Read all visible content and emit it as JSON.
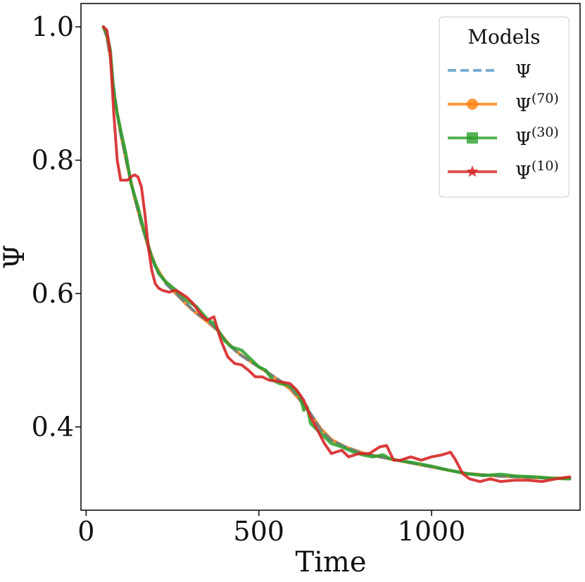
{
  "chart_data": {
    "type": "line",
    "title": "",
    "xlabel": "Time",
    "ylabel": "Ψ",
    "xlim": [
      -15,
      1430
    ],
    "ylim": [
      0.275,
      1.035
    ],
    "xticks": [
      0,
      500,
      1000
    ],
    "xtick_labels": [
      "0",
      "500",
      "1000"
    ],
    "yticks": [
      0.4,
      0.6,
      0.8,
      1.0
    ],
    "ytick_labels": [
      "0.4",
      "0.6",
      "0.8",
      "1.0"
    ],
    "legend": {
      "title": "Models",
      "placement": "top-right",
      "entries": [
        {
          "label": "Ψ",
          "sup": "",
          "marker": "none",
          "style": "dashed"
        },
        {
          "label": "Ψ",
          "sup": "(70)",
          "marker": "circle",
          "style": "solid"
        },
        {
          "label": "Ψ",
          "sup": "(30)",
          "marker": "square",
          "style": "solid"
        },
        {
          "label": "Ψ",
          "sup": "(10)",
          "marker": "star",
          "style": "solid"
        }
      ]
    },
    "series": [
      {
        "name": "Ψ",
        "color": "#1f77b4",
        "x": [
          50,
          60,
          70,
          80,
          90,
          100,
          120,
          140,
          160,
          180,
          200,
          230,
          260,
          290,
          320,
          350,
          380,
          410,
          440,
          470,
          500,
          530,
          560,
          590,
          620,
          650,
          680,
          710,
          750,
          800,
          850,
          900,
          950,
          1000,
          1050,
          1100,
          1150,
          1200,
          1250,
          1300,
          1350,
          1400
        ],
        "values": [
          1.0,
          0.985,
          0.955,
          0.91,
          0.87,
          0.84,
          0.79,
          0.745,
          0.705,
          0.67,
          0.64,
          0.615,
          0.6,
          0.585,
          0.57,
          0.56,
          0.545,
          0.525,
          0.51,
          0.5,
          0.49,
          0.48,
          0.47,
          0.46,
          0.44,
          0.42,
          0.395,
          0.38,
          0.37,
          0.36,
          0.355,
          0.35,
          0.345,
          0.34,
          0.335,
          0.33,
          0.328,
          0.326,
          0.325,
          0.324,
          0.323,
          0.323
        ]
      },
      {
        "name": "Ψ(70)",
        "color": "#ff7f0e",
        "x": [
          50,
          60,
          70,
          80,
          90,
          100,
          120,
          140,
          160,
          180,
          200,
          230,
          260,
          290,
          320,
          350,
          380,
          410,
          440,
          470,
          500,
          530,
          560,
          590,
          620,
          650,
          680,
          710,
          750,
          800,
          850,
          900,
          950,
          1000,
          1050,
          1100,
          1150,
          1200,
          1250,
          1300,
          1350,
          1400
        ],
        "values": [
          1.0,
          0.985,
          0.955,
          0.905,
          0.87,
          0.84,
          0.79,
          0.745,
          0.705,
          0.67,
          0.642,
          0.617,
          0.6,
          0.584,
          0.57,
          0.558,
          0.545,
          0.526,
          0.511,
          0.5,
          0.49,
          0.48,
          0.469,
          0.457,
          0.44,
          0.419,
          0.397,
          0.381,
          0.37,
          0.361,
          0.355,
          0.35,
          0.345,
          0.34,
          0.335,
          0.33,
          0.328,
          0.326,
          0.325,
          0.324,
          0.323,
          0.323
        ]
      },
      {
        "name": "Ψ(30)",
        "color": "#2ca02c",
        "x": [
          50,
          60,
          70,
          80,
          90,
          100,
          115,
          130,
          150,
          170,
          190,
          210,
          230,
          260,
          290,
          320,
          350,
          370,
          400,
          420,
          450,
          470,
          500,
          520,
          540,
          560,
          580,
          600,
          620,
          630,
          640,
          650,
          670,
          690,
          710,
          740,
          770,
          800,
          830,
          860,
          880,
          900,
          950,
          1000,
          1050,
          1100,
          1150,
          1200,
          1250,
          1300,
          1350,
          1400
        ],
        "values": [
          1.0,
          0.99,
          0.965,
          0.9,
          0.87,
          0.845,
          0.81,
          0.765,
          0.73,
          0.69,
          0.655,
          0.63,
          0.618,
          0.605,
          0.59,
          0.58,
          0.562,
          0.555,
          0.53,
          0.52,
          0.515,
          0.505,
          0.49,
          0.485,
          0.47,
          0.465,
          0.463,
          0.458,
          0.445,
          0.425,
          0.43,
          0.405,
          0.395,
          0.385,
          0.375,
          0.37,
          0.363,
          0.358,
          0.355,
          0.358,
          0.352,
          0.35,
          0.346,
          0.341,
          0.335,
          0.33,
          0.327,
          0.329,
          0.326,
          0.325,
          0.323,
          0.322
        ]
      },
      {
        "name": "Ψ(10)",
        "color": "#d62728",
        "x": [
          50,
          60,
          70,
          80,
          90,
          100,
          110,
          120,
          130,
          140,
          150,
          160,
          170,
          180,
          190,
          200,
          210,
          220,
          240,
          260,
          290,
          310,
          330,
          350,
          370,
          390,
          410,
          430,
          450,
          470,
          490,
          510,
          530,
          560,
          590,
          610,
          630,
          650,
          670,
          690,
          710,
          740,
          760,
          790,
          820,
          850,
          870,
          890,
          910,
          940,
          970,
          1000,
          1030,
          1055,
          1070,
          1090,
          1110,
          1140,
          1170,
          1200,
          1240,
          1280,
          1320,
          1360,
          1400
        ],
        "values": [
          1.0,
          0.995,
          0.96,
          0.87,
          0.8,
          0.77,
          0.77,
          0.77,
          0.775,
          0.778,
          0.775,
          0.76,
          0.72,
          0.67,
          0.635,
          0.615,
          0.608,
          0.605,
          0.602,
          0.605,
          0.595,
          0.585,
          0.57,
          0.56,
          0.565,
          0.53,
          0.505,
          0.495,
          0.493,
          0.485,
          0.475,
          0.475,
          0.47,
          0.468,
          0.465,
          0.455,
          0.44,
          0.415,
          0.395,
          0.375,
          0.36,
          0.365,
          0.355,
          0.36,
          0.36,
          0.37,
          0.372,
          0.35,
          0.35,
          0.355,
          0.35,
          0.355,
          0.358,
          0.362,
          0.35,
          0.33,
          0.322,
          0.318,
          0.322,
          0.318,
          0.32,
          0.32,
          0.318,
          0.322,
          0.325
        ]
      }
    ]
  }
}
